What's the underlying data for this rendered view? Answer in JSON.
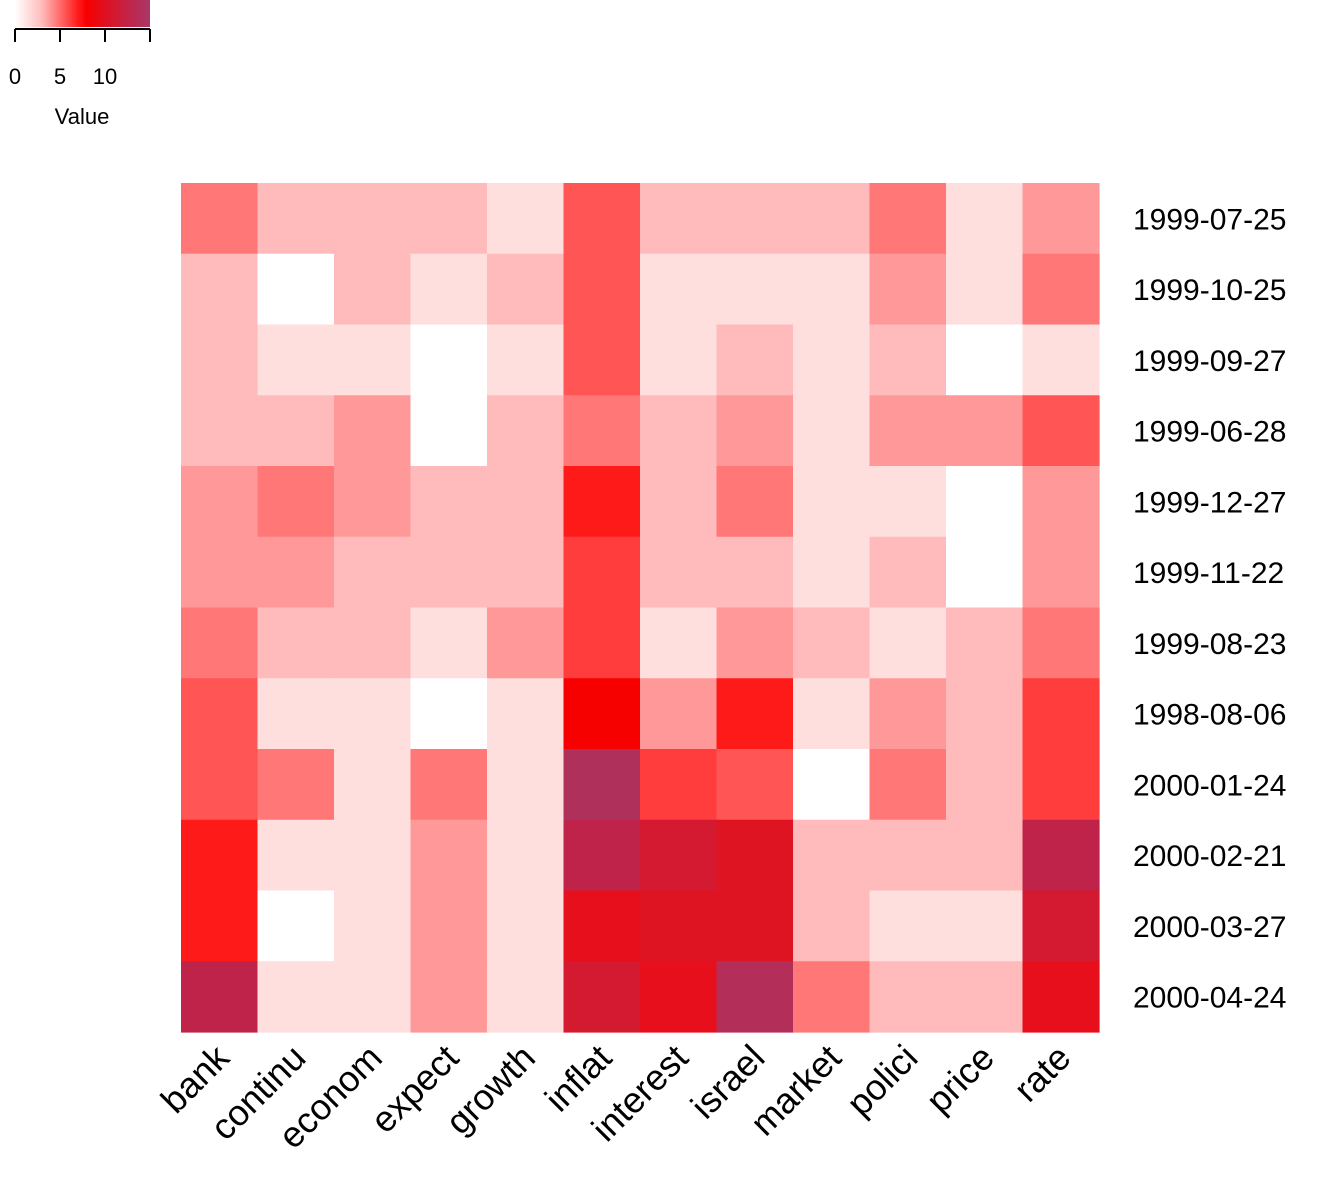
{
  "chart_data": {
    "type": "heatmap",
    "title": "",
    "legend": {
      "title": "Value",
      "ticks": [
        0,
        5,
        10
      ],
      "range": [
        0,
        15
      ],
      "placement": "top-left"
    },
    "columns": [
      "bank",
      "continu",
      "econom",
      "expect",
      "growth",
      "inflat",
      "interest",
      "israel",
      "market",
      "polici",
      "price",
      "rate"
    ],
    "rows": [
      "1999-07-25",
      "1999-10-25",
      "1999-09-27",
      "1999-06-28",
      "1999-12-27",
      "1999-11-22",
      "1999-08-23",
      "1998-08-06",
      "2000-01-24",
      "2000-02-21",
      "2000-03-27",
      "2000-04-24"
    ],
    "values": [
      [
        4,
        2,
        2,
        2,
        1,
        5,
        2,
        2,
        2,
        4,
        1,
        3
      ],
      [
        2,
        0,
        2,
        1,
        2,
        5,
        1,
        1,
        1,
        3,
        1,
        4
      ],
      [
        2,
        1,
        1,
        0,
        1,
        5,
        1,
        2,
        1,
        2,
        0,
        1
      ],
      [
        2,
        2,
        3,
        0,
        2,
        4,
        2,
        3,
        1,
        3,
        3,
        5
      ],
      [
        3,
        4,
        3,
        2,
        2,
        7,
        2,
        4,
        1,
        1,
        0,
        3
      ],
      [
        3,
        3,
        2,
        2,
        2,
        6,
        2,
        2,
        1,
        2,
        0,
        3
      ],
      [
        4,
        2,
        2,
        1,
        3,
        6,
        1,
        3,
        2,
        1,
        2,
        4
      ],
      [
        5,
        1,
        1,
        0,
        1,
        8,
        3,
        7,
        1,
        3,
        2,
        6
      ],
      [
        5,
        4,
        1,
        4,
        1,
        14,
        6,
        5,
        0,
        4,
        2,
        6
      ],
      [
        7,
        1,
        1,
        3,
        1,
        12,
        11,
        10,
        2,
        2,
        2,
        12
      ],
      [
        7,
        0,
        1,
        3,
        1,
        9,
        10,
        10,
        2,
        1,
        1,
        11
      ],
      [
        12,
        1,
        1,
        3,
        1,
        11,
        9,
        13,
        4,
        2,
        2,
        9
      ]
    ]
  }
}
